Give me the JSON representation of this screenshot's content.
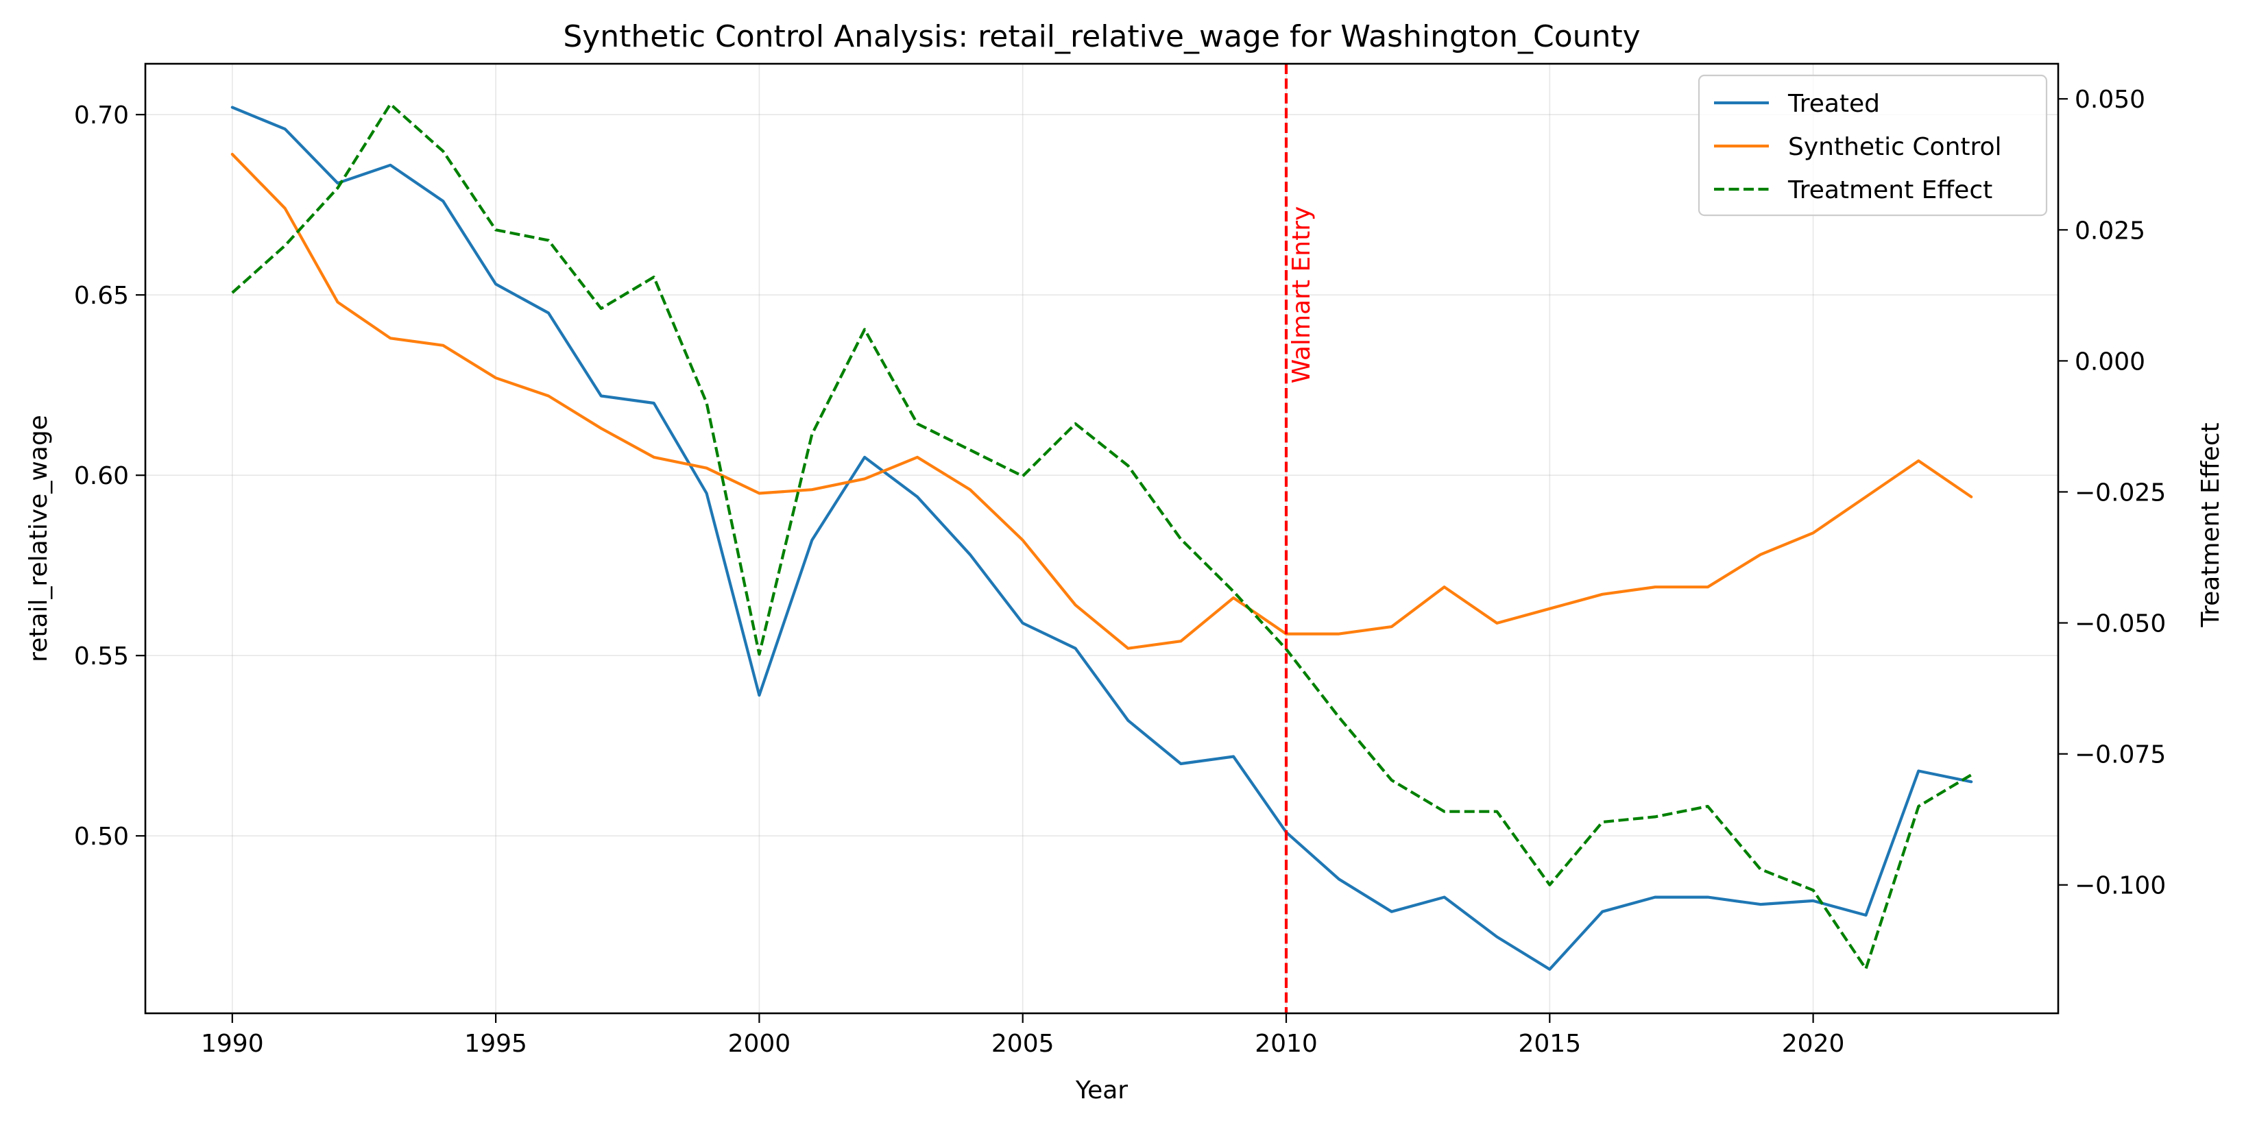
{
  "chart_data": {
    "type": "line",
    "title": "Synthetic Control Analysis: retail_relative_wage for Washington_County",
    "xlabel": "Year",
    "ylabel": "retail_relative_wage",
    "y2label": "Treatment Effect",
    "xlim": [
      1988.35,
      2024.65
    ],
    "ylim": [
      0.4508,
      0.7141
    ],
    "y2lim": [
      -0.1245,
      0.0567
    ],
    "x_ticks": [
      1990,
      1995,
      2000,
      2005,
      2010,
      2015,
      2020
    ],
    "y_ticks": [
      0.5,
      0.55,
      0.6,
      0.65,
      0.7
    ],
    "y_tick_labels": [
      "0.50",
      "0.55",
      "0.60",
      "0.65",
      "0.70"
    ],
    "y2_ticks": [
      -0.1,
      -0.075,
      -0.05,
      -0.025,
      0.0,
      0.025,
      0.05
    ],
    "y2_tick_labels": [
      "−0.100",
      "−0.075",
      "−0.050",
      "−0.025",
      "0.000",
      "0.025",
      "0.050"
    ],
    "grid": true,
    "legend_position": "top-right",
    "x": [
      1990,
      1991,
      1992,
      1993,
      1994,
      1995,
      1996,
      1997,
      1998,
      1999,
      2000,
      2001,
      2002,
      2003,
      2004,
      2005,
      2006,
      2007,
      2008,
      2009,
      2010,
      2011,
      2012,
      2013,
      2014,
      2015,
      2016,
      2017,
      2018,
      2019,
      2020,
      2021,
      2022,
      2023
    ],
    "series": [
      {
        "name": "Treated",
        "axis": "left",
        "color": "#1f77b4",
        "style": "solid",
        "values": [
          0.702,
          0.696,
          0.681,
          0.686,
          0.676,
          0.653,
          0.645,
          0.622,
          0.62,
          0.595,
          0.539,
          0.582,
          0.605,
          0.594,
          0.578,
          0.559,
          0.552,
          0.532,
          0.52,
          0.522,
          0.501,
          0.488,
          0.479,
          0.483,
          0.472,
          0.463,
          0.479,
          0.483,
          0.483,
          0.481,
          0.482,
          0.478,
          0.518,
          0.515
        ]
      },
      {
        "name": "Synthetic Control",
        "axis": "left",
        "color": "#ff7f0e",
        "style": "solid",
        "values": [
          0.689,
          0.674,
          0.648,
          0.638,
          0.636,
          0.627,
          0.622,
          0.613,
          0.605,
          0.602,
          0.595,
          0.596,
          0.599,
          0.605,
          0.596,
          0.582,
          0.564,
          0.552,
          0.554,
          0.566,
          0.556,
          0.556,
          0.558,
          0.569,
          0.559,
          0.563,
          0.567,
          0.569,
          0.569,
          0.578,
          0.584,
          0.594,
          0.604,
          0.594
        ]
      },
      {
        "name": "Treatment Effect",
        "axis": "right",
        "color": "#008000",
        "style": "dashed",
        "values": [
          0.013,
          0.022,
          0.033,
          0.049,
          0.04,
          0.025,
          0.023,
          0.01,
          0.016,
          -0.008,
          -0.056,
          -0.014,
          0.006,
          -0.012,
          -0.017,
          -0.022,
          -0.012,
          -0.02,
          -0.034,
          -0.044,
          -0.055,
          -0.068,
          -0.08,
          -0.086,
          -0.086,
          -0.1,
          -0.088,
          -0.087,
          -0.085,
          -0.097,
          -0.101,
          -0.116,
          -0.085,
          -0.079
        ]
      }
    ],
    "annotations": [
      {
        "type": "vline",
        "x": 2010,
        "color": "#ff0000",
        "style": "dashed",
        "label": "Walmart Entry"
      }
    ]
  }
}
